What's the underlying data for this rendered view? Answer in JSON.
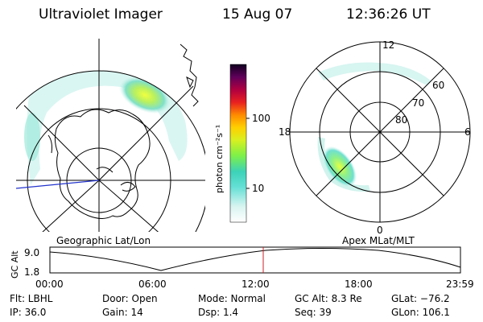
{
  "header": {
    "instrument": "Ultraviolet Imager",
    "date": "15 Aug 07",
    "time": "12:36:26 UT"
  },
  "colorbar": {
    "unit_label": "photon cm⁻²s⁻¹",
    "ticks": [
      "100",
      "10"
    ]
  },
  "left_panel": {
    "label": "Geographic Lat/Lon"
  },
  "right_panel": {
    "label": "Apex MLat/MLT",
    "mlt_labels": {
      "top": "12",
      "left": "18",
      "right": "6",
      "bottom": "0"
    },
    "lat_labels": [
      "60",
      "70",
      "80"
    ]
  },
  "altitude_plot": {
    "ylabel": "GC Alt",
    "yticks": [
      "9.0",
      "1.8"
    ],
    "xticks": [
      "00:00",
      "06:00",
      "12:00",
      "18:00",
      "23:59"
    ]
  },
  "footer": {
    "row1": {
      "flt": "Flt: LBHL",
      "door": "Door: Open",
      "mode": "Mode: Normal",
      "gcalt": "GC Alt: 8.3 Re",
      "glat": "GLat: −76.2"
    },
    "row2": {
      "ip": "IP: 36.0",
      "gain": "Gain: 14",
      "dsp": "Dsp:     1.4",
      "seq": "Seq: 39",
      "glon": "GLon: 106.1"
    }
  },
  "colors": {
    "grid": "#000000",
    "geo_line": "#2233cc",
    "time_marker": "#cc2222",
    "aurora_low": "#6fe0d0",
    "aurora_high": "#f0ff40"
  }
}
